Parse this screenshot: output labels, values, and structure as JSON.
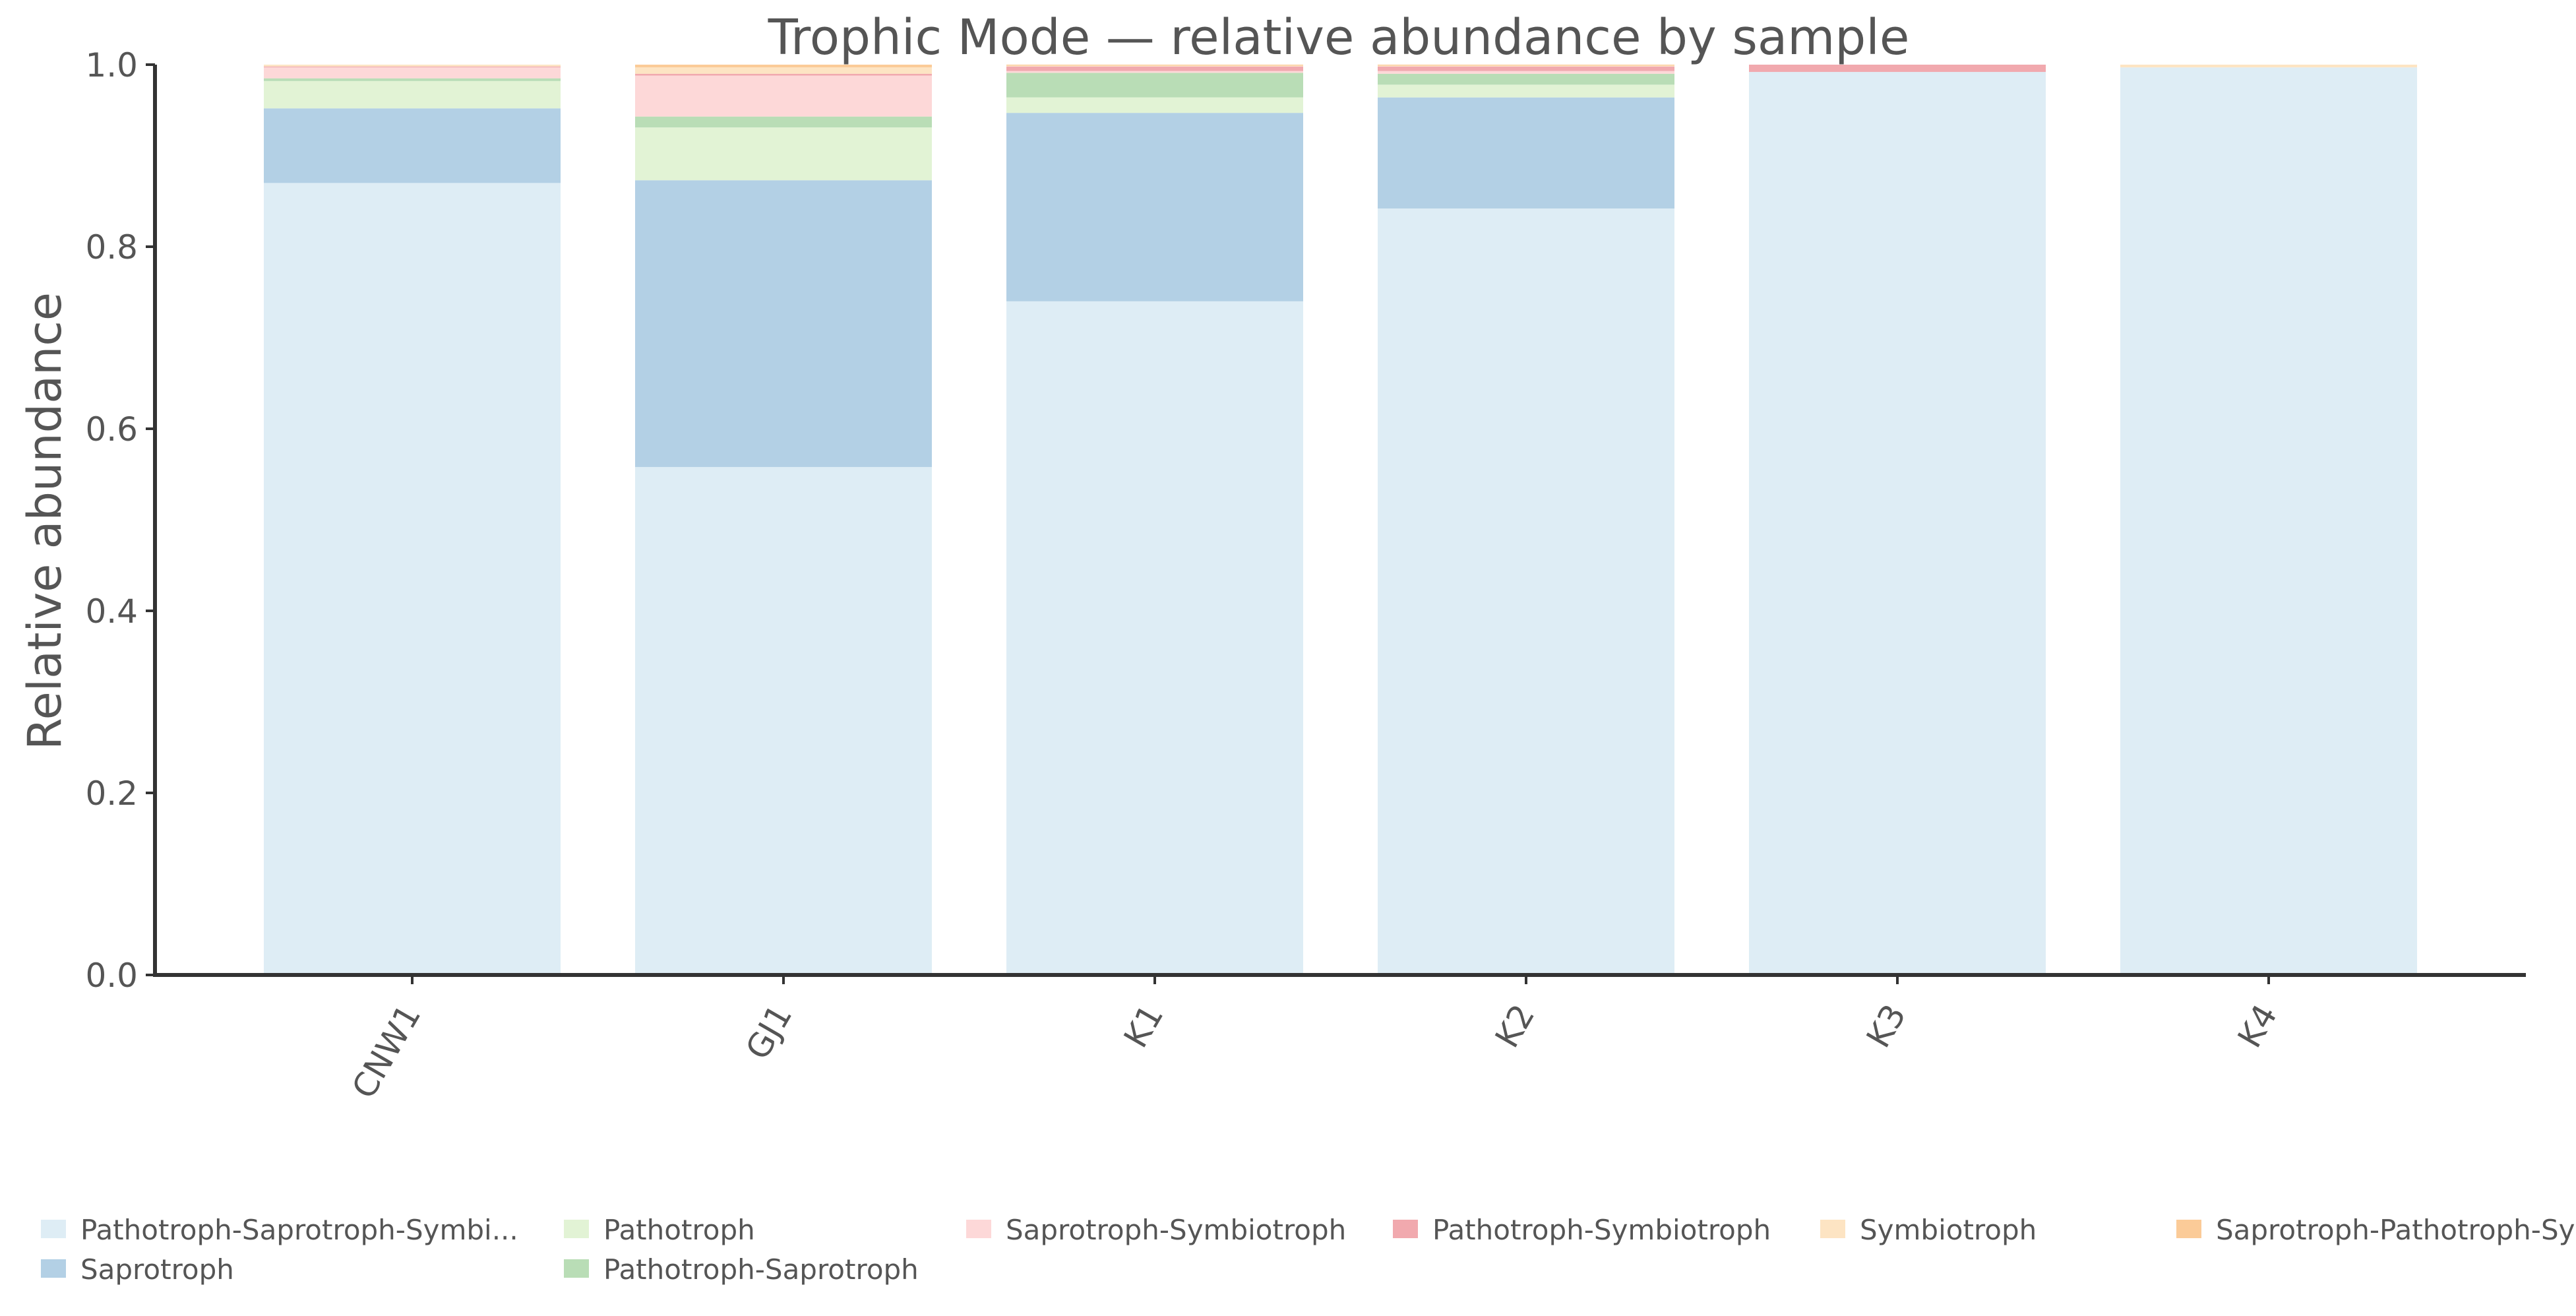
{
  "chart_data": {
    "type": "bar",
    "stacked": true,
    "title": "Trophic Mode — relative abundance by sample",
    "xlabel": "",
    "ylabel": "Relative abundance",
    "ylim": [
      0,
      1
    ],
    "yticks": [
      "0.0",
      "0.2",
      "0.4",
      "0.6",
      "0.8",
      "1.0"
    ],
    "grid": false,
    "legend_position": "bottom",
    "categories": [
      "CNW1",
      "GJ1",
      "K1",
      "K2",
      "K3",
      "K4"
    ],
    "series": [
      {
        "name": "Pathotroph-Saprotroph-Symbi...",
        "color": "#deedf5",
        "values": [
          0.87,
          0.558,
          0.74,
          0.842,
          0.992,
          0.997
        ]
      },
      {
        "name": "Saprotroph",
        "color": "#b3d0e5",
        "values": [
          0.082,
          0.315,
          0.207,
          0.122,
          0.0,
          0.0
        ]
      },
      {
        "name": "Pathotroph",
        "color": "#e2f3d5",
        "values": [
          0.03,
          0.058,
          0.017,
          0.014,
          0.0,
          0.0
        ]
      },
      {
        "name": "Pathotroph-Saprotroph",
        "color": "#b9ddb6",
        "values": [
          0.003,
          0.012,
          0.027,
          0.012,
          0.0,
          0.0
        ]
      },
      {
        "name": "Saprotroph-Symbiotroph",
        "color": "#fdd8d8",
        "values": [
          0.012,
          0.045,
          0.002,
          0.003,
          0.0,
          0.0
        ]
      },
      {
        "name": "Pathotroph-Symbiotroph",
        "color": "#f1a9ae",
        "values": [
          0.001,
          0.002,
          0.005,
          0.005,
          0.008,
          0.0
        ]
      },
      {
        "name": "Symbiotroph",
        "color": "#fde4c3",
        "values": [
          0.002,
          0.007,
          0.001,
          0.001,
          0.0,
          0.003
        ]
      },
      {
        "name": "Saprotroph-Pathotroph-Symbi...",
        "color": "#fbcb98",
        "values": [
          0.0,
          0.003,
          0.001,
          0.001,
          0.0,
          0.0
        ]
      }
    ]
  }
}
